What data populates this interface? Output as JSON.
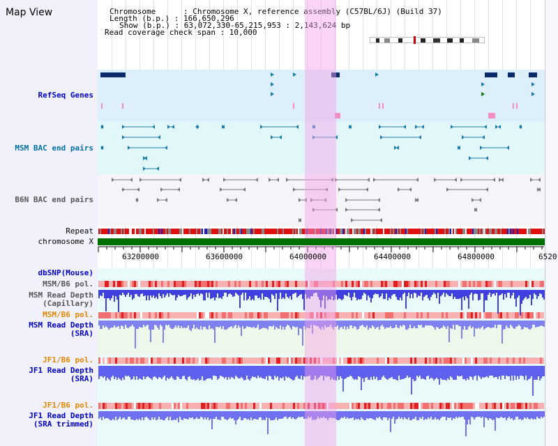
{
  "app": {
    "title": "Map View"
  },
  "header": {
    "chromosome": "Chromosome      : Chromosome X, reference assembly (C57BL/6J) (Build 37)",
    "length": "Length (b.p.) : 166,650,296",
    "show": "Show (b.p.) : 63,072,330-65,215,953 : 2,143,624 bp",
    "coverage": "Read coverage check span : 10,000"
  },
  "tracks": {
    "refseq": "RefSeq Genes",
    "msm_bac": "MSM BAC end pairs",
    "b6n_bac": "B6N BAC end pairs",
    "repeat": "Repeat",
    "chromosome": "chromosome X",
    "dbsnp": "dbSNP(Mouse)",
    "msm_b6_pol": "MSM/B6 pol.",
    "msm_depth_cap_1": "MSM Read Depth",
    "msm_depth_cap_2": "(Capillary)",
    "msm_b6_pol2": "MSM/B6 pol.",
    "msm_depth_sra_1": "MSM Read Depth",
    "msm_depth_sra_2": "(SRA)",
    "jf1_b6_pol": "JF1/B6 pol.",
    "jf1_depth_sra_1": "JF1 Read Depth",
    "jf1_depth_sra_2": "(SRA)",
    "jf1_b6_pol2": "JF1/B6 pol.",
    "jf1_depth_trim_1": "JF1 Read Depth",
    "jf1_depth_trim_2": "(SRA trimmed)"
  },
  "axis": {
    "ticks": [
      "63200000",
      "63600000",
      "64000000",
      "64400000",
      "64800000",
      "6520"
    ]
  },
  "colors": {
    "navy": "#0000c0",
    "refseq_band": "#dceffa",
    "msm_band": "#e2f7fa",
    "b6n_band": "#f5f5f9",
    "chromosome": "#007000",
    "depth_blue": "#6060f0",
    "highlight": "#f5a0e6"
  }
}
